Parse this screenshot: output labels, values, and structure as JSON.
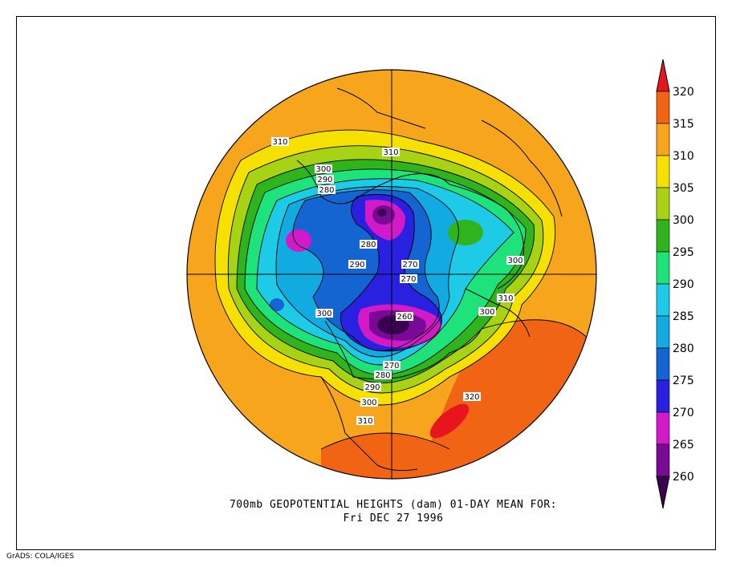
{
  "title": {
    "line1": "700mb GEOPOTENTIAL HEIGHTS (dam)   01-DAY MEAN FOR:",
    "line2": "Fri DEC 27 1996"
  },
  "credit": "GrADS: COLA/IGES",
  "colorbar": {
    "levels": [
      {
        "label": "320",
        "color": "#e8141e"
      },
      {
        "label": "315",
        "color": "#f06414"
      },
      {
        "label": "310",
        "color": "#f7a51c"
      },
      {
        "label": "305",
        "color": "#f5e000"
      },
      {
        "label": "300",
        "color": "#a8d214"
      },
      {
        "label": "295",
        "color": "#30b41e"
      },
      {
        "label": "290",
        "color": "#1ee27a"
      },
      {
        "label": "285",
        "color": "#1ecbe6"
      },
      {
        "label": "280",
        "color": "#11aae1"
      },
      {
        "label": "275",
        "color": "#1464d2"
      },
      {
        "label": "270",
        "color": "#2a20e0"
      },
      {
        "label": "265",
        "color": "#d21ac8"
      },
      {
        "label": "260",
        "color": "#780a96"
      }
    ],
    "lowest_color": "#3c0050"
  },
  "contour_labels": [
    {
      "text": "310"
    },
    {
      "text": "310"
    },
    {
      "text": "300"
    },
    {
      "text": "290"
    },
    {
      "text": "280"
    },
    {
      "text": "280"
    },
    {
      "text": "290"
    },
    {
      "text": "270"
    },
    {
      "text": "270"
    },
    {
      "text": "300"
    },
    {
      "text": "310"
    },
    {
      "text": "300"
    },
    {
      "text": "300"
    },
    {
      "text": "260"
    },
    {
      "text": "270"
    },
    {
      "text": "280"
    },
    {
      "text": "290"
    },
    {
      "text": "300"
    },
    {
      "text": "310"
    },
    {
      "text": "320"
    }
  ]
}
